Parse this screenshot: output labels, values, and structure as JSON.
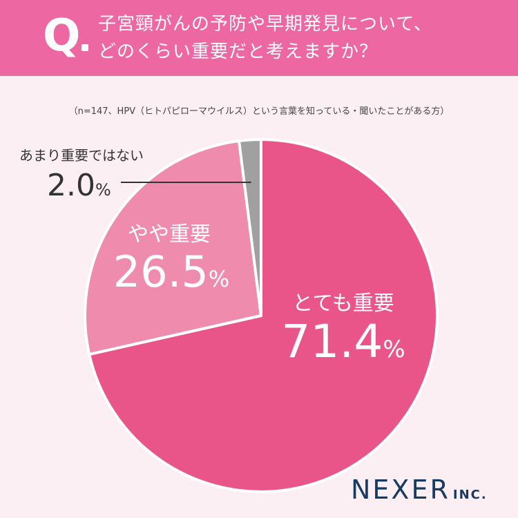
{
  "header": {
    "q_mark": "Q",
    "question_line1": "子宮頸がんの予防や早期発見について、",
    "question_line2": "どのくらい重要だと考えますか？"
  },
  "note": "（n=147、HPV（ヒトパピローマウイルス）という言葉を知っている・聞いたことがある方）",
  "logo": {
    "main": "NEXER",
    "sub": "INC."
  },
  "colors": {
    "header_bg": "#ed67a3",
    "page_bg": "#fbeff3",
    "slice_very": "#ea5589",
    "slice_somewhat": "#ef8cae",
    "slice_not_very": "#a0a0a0",
    "logo": "#173a63"
  },
  "chart_data": {
    "type": "pie",
    "title": "",
    "unit": "%",
    "start_angle_deg": 0,
    "direction": "clockwise",
    "slices": [
      {
        "label": "とても重要",
        "value": 71.4,
        "value_text": "71.4",
        "color": "#ea5589"
      },
      {
        "label": "やや重要",
        "value": 26.5,
        "value_text": "26.5",
        "color": "#ef8cae"
      },
      {
        "label": "あまり重要ではない",
        "value": 2.0,
        "value_text": "2.0",
        "color": "#a0a0a0"
      }
    ]
  }
}
